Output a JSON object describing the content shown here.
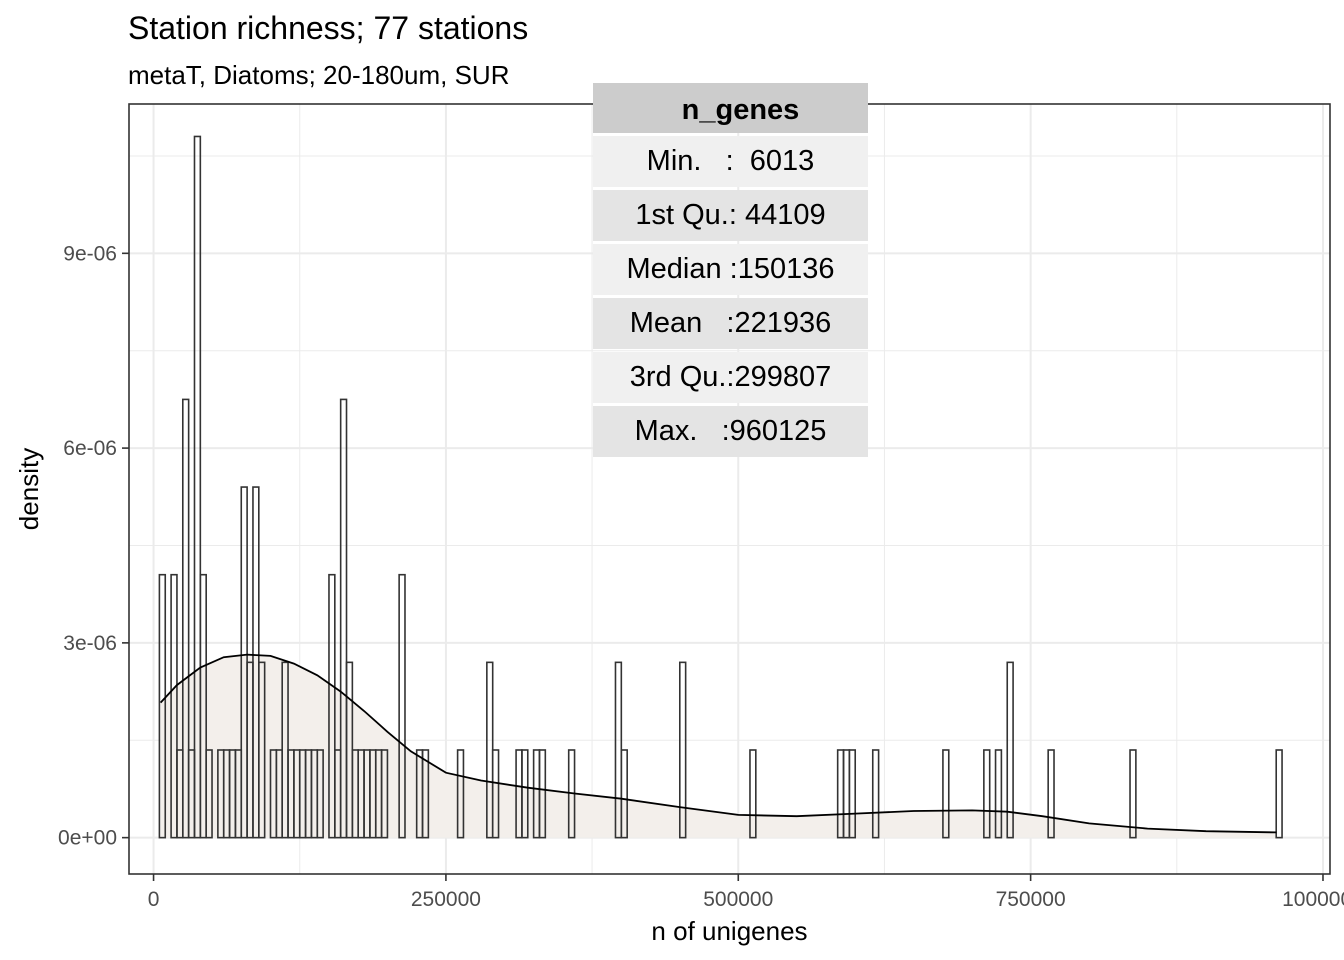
{
  "title": "Station richness; 77 stations",
  "subtitle": "metaT, Diatoms; 20-180um, SUR",
  "summary_table": {
    "header": "n_genes",
    "rows": [
      "Min.   :  6013",
      "1st Qu.: 44109",
      "Median :150136",
      "Mean   :221936",
      "3rd Qu.:299807",
      "Max.   :960125"
    ]
  },
  "colors": {
    "bar_fill": "#ffffff",
    "bar_stroke": "#333333",
    "density_fill": "#f3efeb",
    "density_line": "#000000",
    "grid": "#ebebeb",
    "panel_border": "#333333"
  },
  "chart_data": {
    "type": "histogram",
    "title": "Station richness; 77 stations",
    "subtitle": "metaT, Diatoms; 20-180um, SUR",
    "xlabel": "n of unigenes",
    "ylabel": "density",
    "xlim": [
      -21000,
      1006000
    ],
    "ylim": [
      -5.6e-07,
      1.13e-05
    ],
    "x_ticks": [
      0,
      250000,
      500000,
      750000,
      1000000
    ],
    "x_tick_labels": [
      "0",
      "250000",
      "500000",
      "750000",
      "1000000"
    ],
    "y_ticks": [
      0,
      3e-06,
      6e-06,
      9e-06
    ],
    "y_tick_labels": [
      "0e+00",
      "3e-06",
      "6e-06",
      "9e-06"
    ],
    "grid": true,
    "bin_width": 5000,
    "bins": [
      {
        "x": 2500,
        "y": 0
      },
      {
        "x": 7500,
        "y": 4.05e-06
      },
      {
        "x": 12500,
        "y": 0
      },
      {
        "x": 17500,
        "y": 4.05e-06
      },
      {
        "x": 22500,
        "y": 1.35e-06
      },
      {
        "x": 27500,
        "y": 6.75e-06
      },
      {
        "x": 32500,
        "y": 1.35e-06
      },
      {
        "x": 37500,
        "y": 1.08e-05
      },
      {
        "x": 42500,
        "y": 4.05e-06
      },
      {
        "x": 47500,
        "y": 1.35e-06
      },
      {
        "x": 52500,
        "y": 0
      },
      {
        "x": 57500,
        "y": 1.35e-06
      },
      {
        "x": 62500,
        "y": 1.35e-06
      },
      {
        "x": 67500,
        "y": 1.35e-06
      },
      {
        "x": 72500,
        "y": 1.35e-06
      },
      {
        "x": 77500,
        "y": 5.4e-06
      },
      {
        "x": 82500,
        "y": 2.7e-06
      },
      {
        "x": 87500,
        "y": 5.4e-06
      },
      {
        "x": 92500,
        "y": 2.7e-06
      },
      {
        "x": 97500,
        "y": 0
      },
      {
        "x": 102500,
        "y": 1.35e-06
      },
      {
        "x": 107500,
        "y": 1.35e-06
      },
      {
        "x": 112500,
        "y": 2.7e-06
      },
      {
        "x": 117500,
        "y": 1.35e-06
      },
      {
        "x": 122500,
        "y": 1.35e-06
      },
      {
        "x": 127500,
        "y": 1.35e-06
      },
      {
        "x": 132500,
        "y": 1.35e-06
      },
      {
        "x": 137500,
        "y": 1.35e-06
      },
      {
        "x": 142500,
        "y": 1.35e-06
      },
      {
        "x": 147500,
        "y": 0
      },
      {
        "x": 152500,
        "y": 4.05e-06
      },
      {
        "x": 157500,
        "y": 1.35e-06
      },
      {
        "x": 162500,
        "y": 6.75e-06
      },
      {
        "x": 167500,
        "y": 2.7e-06
      },
      {
        "x": 172500,
        "y": 1.35e-06
      },
      {
        "x": 177500,
        "y": 1.35e-06
      },
      {
        "x": 182500,
        "y": 1.35e-06
      },
      {
        "x": 187500,
        "y": 1.35e-06
      },
      {
        "x": 192500,
        "y": 1.35e-06
      },
      {
        "x": 197500,
        "y": 1.35e-06
      },
      {
        "x": 202500,
        "y": 0
      },
      {
        "x": 207500,
        "y": 0
      },
      {
        "x": 212500,
        "y": 4.05e-06
      },
      {
        "x": 217500,
        "y": 0
      },
      {
        "x": 222500,
        "y": 0
      },
      {
        "x": 227500,
        "y": 1.35e-06
      },
      {
        "x": 232500,
        "y": 1.35e-06
      },
      {
        "x": 237500,
        "y": 0
      },
      {
        "x": 242500,
        "y": 0
      },
      {
        "x": 247500,
        "y": 0
      },
      {
        "x": 252500,
        "y": 0
      },
      {
        "x": 257500,
        "y": 0
      },
      {
        "x": 262500,
        "y": 1.35e-06
      },
      {
        "x": 267500,
        "y": 0
      },
      {
        "x": 272500,
        "y": 0
      },
      {
        "x": 277500,
        "y": 0
      },
      {
        "x": 282500,
        "y": 0
      },
      {
        "x": 287500,
        "y": 2.7e-06
      },
      {
        "x": 292500,
        "y": 1.35e-06
      },
      {
        "x": 297500,
        "y": 0
      },
      {
        "x": 302500,
        "y": 0
      },
      {
        "x": 307500,
        "y": 0
      },
      {
        "x": 312500,
        "y": 1.35e-06
      },
      {
        "x": 317500,
        "y": 1.35e-06
      },
      {
        "x": 322500,
        "y": 0
      },
      {
        "x": 327500,
        "y": 1.35e-06
      },
      {
        "x": 332500,
        "y": 1.35e-06
      },
      {
        "x": 337500,
        "y": 0
      },
      {
        "x": 342500,
        "y": 0
      },
      {
        "x": 347500,
        "y": 0
      },
      {
        "x": 352500,
        "y": 0
      },
      {
        "x": 357500,
        "y": 1.35e-06
      },
      {
        "x": 362500,
        "y": 0
      },
      {
        "x": 367500,
        "y": 0
      },
      {
        "x": 372500,
        "y": 0
      },
      {
        "x": 377500,
        "y": 0
      },
      {
        "x": 382500,
        "y": 0
      },
      {
        "x": 387500,
        "y": 0
      },
      {
        "x": 392500,
        "y": 0
      },
      {
        "x": 397500,
        "y": 2.7e-06
      },
      {
        "x": 402500,
        "y": 1.35e-06
      },
      {
        "x": 407500,
        "y": 0
      },
      {
        "x": 452500,
        "y": 2.7e-06
      },
      {
        "x": 512500,
        "y": 1.35e-06
      },
      {
        "x": 587500,
        "y": 1.35e-06
      },
      {
        "x": 592500,
        "y": 1.35e-06
      },
      {
        "x": 597500,
        "y": 1.35e-06
      },
      {
        "x": 617500,
        "y": 1.35e-06
      },
      {
        "x": 677500,
        "y": 1.35e-06
      },
      {
        "x": 712500,
        "y": 1.35e-06
      },
      {
        "x": 722500,
        "y": 1.35e-06
      },
      {
        "x": 732500,
        "y": 2.7e-06
      },
      {
        "x": 767500,
        "y": 1.35e-06
      },
      {
        "x": 837500,
        "y": 1.35e-06
      },
      {
        "x": 962500,
        "y": 1.35e-06
      }
    ],
    "density_curve": {
      "x": [
        6013,
        20000,
        40000,
        60000,
        80000,
        100000,
        120000,
        140000,
        160000,
        180000,
        200000,
        220000,
        250000,
        280000,
        320000,
        360000,
        400000,
        450000,
        500000,
        550000,
        600000,
        650000,
        700000,
        730000,
        760000,
        800000,
        850000,
        900000,
        960125
      ],
      "y": [
        2.08e-06,
        2.35e-06,
        2.62e-06,
        2.78e-06,
        2.82e-06,
        2.8e-06,
        2.68e-06,
        2.5e-06,
        2.25e-06,
        1.95e-06,
        1.63e-06,
        1.33e-06,
        1e-06,
        8.8e-07,
        7.7e-07,
        6.8e-07,
        6e-07,
        4.7e-07,
        3.5e-07,
        3.3e-07,
        3.7e-07,
        4.1e-07,
        4.2e-07,
        4e-07,
        3.3e-07,
        2.2e-07,
        1.4e-07,
        1e-07,
        8e-08
      ]
    }
  }
}
